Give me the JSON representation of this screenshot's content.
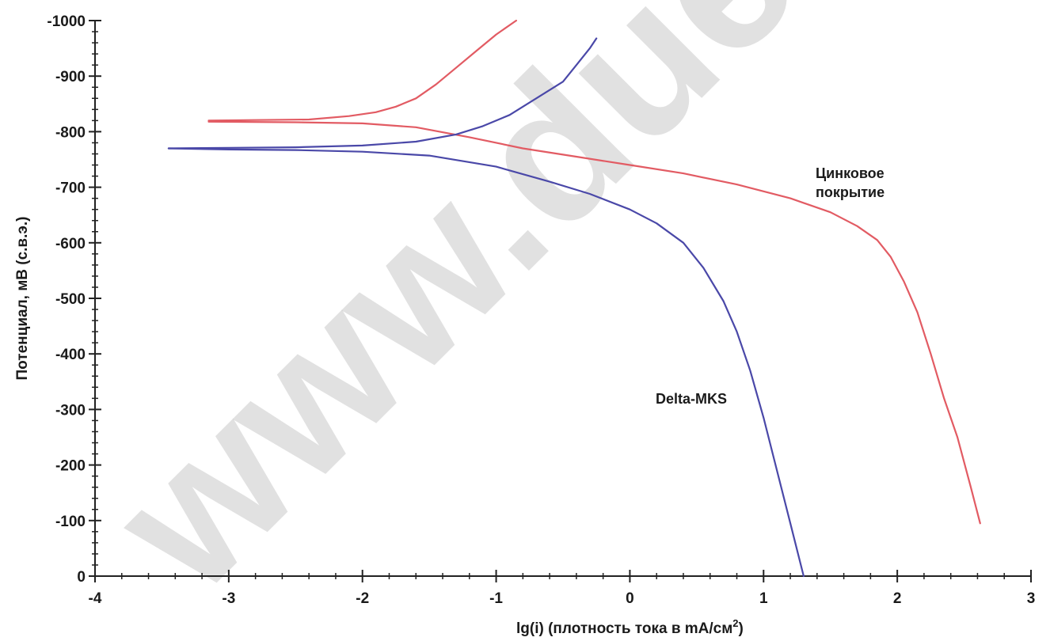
{
  "watermark_text": "www.duerer.ru",
  "chart_data": {
    "type": "line",
    "xlabel": "lg(i) (плотность тока в mA/см",
    "xlabel_sup": "2",
    "xlabel_close": ")",
    "ylabel": "Потенциал, мВ (с.в.э.)",
    "xlim": [
      -4,
      3
    ],
    "ylim": [
      0,
      -1000
    ],
    "x_ticks": [
      -4,
      -3,
      -2,
      -1,
      0,
      1,
      2,
      3
    ],
    "y_ticks": [
      0,
      -100,
      -200,
      -300,
      -400,
      -500,
      -600,
      -700,
      -800,
      -900,
      -1000
    ],
    "grid": false,
    "legend": "none",
    "series": [
      {
        "name": "Цинковое\nпокрытие",
        "name_lines": [
          "Цинковое",
          "покрытие"
        ],
        "color": "#e25b63",
        "x": [
          -3.15,
          -2.8,
          -2.4,
          -2.1,
          -1.9,
          -1.75,
          -1.6,
          -1.45,
          -1.3,
          -1.15,
          -1.0,
          -0.85
        ],
        "y": [
          -820,
          -821,
          -822,
          -828,
          -835,
          -845,
          -860,
          -885,
          -915,
          -945,
          -975,
          -1000
        ],
        "x2": [
          -3.15,
          -2.5,
          -2.0,
          -1.6,
          -1.2,
          -0.8,
          -0.4,
          0.0,
          0.4,
          0.8,
          1.2,
          1.5,
          1.7,
          1.85,
          1.95,
          2.05,
          2.15,
          2.25,
          2.35,
          2.45,
          2.55,
          2.62
        ],
        "y2": [
          -818,
          -817,
          -815,
          -808,
          -790,
          -770,
          -755,
          -740,
          -725,
          -705,
          -680,
          -655,
          -630,
          -605,
          -575,
          -530,
          -475,
          -400,
          -320,
          -250,
          -160,
          -95
        ]
      },
      {
        "name": "Delta-MKS",
        "name_lines": [
          "Delta-MKS"
        ],
        "color": "#4a48a8",
        "x": [
          -3.45,
          -3.0,
          -2.5,
          -2.0,
          -1.6,
          -1.3,
          -1.1,
          -0.9,
          -0.7,
          -0.5,
          -0.4,
          -0.3,
          -0.25
        ],
        "y": [
          -770,
          -771,
          -772,
          -775,
          -782,
          -795,
          -810,
          -830,
          -860,
          -890,
          -920,
          -950,
          -968
        ],
        "x2": [
          -3.45,
          -3.0,
          -2.5,
          -2.0,
          -1.5,
          -1.0,
          -0.6,
          -0.3,
          0.0,
          0.2,
          0.4,
          0.55,
          0.7,
          0.8,
          0.9,
          1.0,
          1.1,
          1.2,
          1.3
        ],
        "y2": [
          -770,
          -768,
          -767,
          -764,
          -757,
          -737,
          -710,
          -688,
          -660,
          -635,
          -600,
          -555,
          -495,
          -440,
          -370,
          -285,
          -190,
          -95,
          0
        ]
      }
    ]
  }
}
